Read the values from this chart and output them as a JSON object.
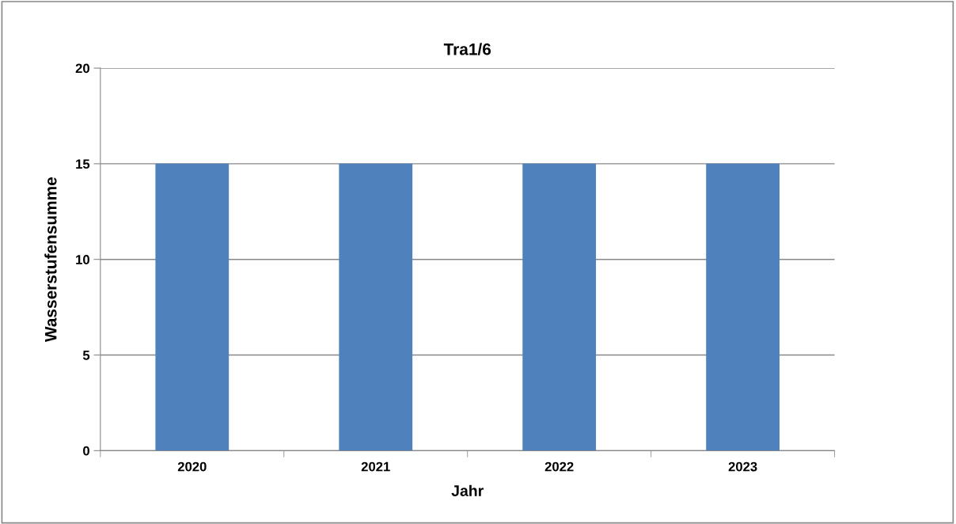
{
  "chart_data": {
    "type": "bar",
    "title": "Tra1/6",
    "xlabel": "Jahr",
    "ylabel": "Wasserstufensumme",
    "categories": [
      "2020",
      "2021",
      "2022",
      "2023"
    ],
    "values": [
      15,
      15,
      15,
      15
    ],
    "color": "#4f81bd",
    "ylim": [
      0,
      20
    ],
    "yticks": [
      0,
      5,
      10,
      15,
      20
    ],
    "grid": "y",
    "legend": false
  }
}
